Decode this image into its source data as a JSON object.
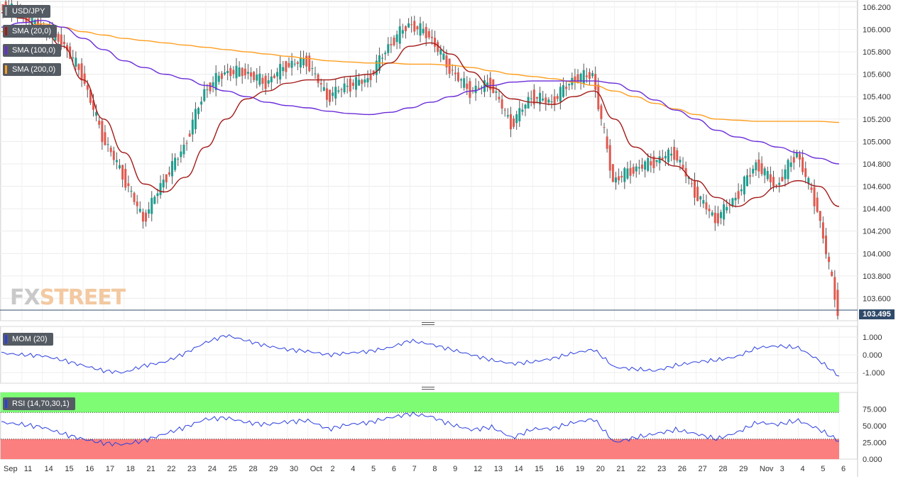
{
  "colors": {
    "up": "#1f9d8f",
    "down": "#e0594f",
    "sma20": "#a31a18",
    "sma100": "#6a2bd8",
    "sma200": "#ff9d1e",
    "momentum": "#2b3fe0",
    "rsi": "#2b3fe0",
    "overbought_zone": "#7dfc74",
    "oversold_zone": "#fb7f7f",
    "price_line": "#2f4a6a"
  },
  "logo": {
    "left": "FX",
    "right": "STREET"
  },
  "legend": {
    "pair": "USD/JPY",
    "sma20": "SMA (20,0)",
    "sma100": "SMA (100,0)",
    "sma200": "SMA (200,0)",
    "mom": "MOM (20)",
    "rsi": "RSI (14,70,30,1)"
  },
  "current_price": "103.495",
  "chart_data": [
    {
      "type": "line",
      "title": "USD/JPY",
      "x": [
        "Sep",
        "11",
        "14",
        "15",
        "16",
        "17",
        "18",
        "21",
        "22",
        "23",
        "24",
        "25",
        "28",
        "29",
        "30",
        "Oct",
        "2",
        "4",
        "5",
        "6",
        "7",
        "8",
        "9",
        "12",
        "13",
        "14",
        "15",
        "16",
        "19",
        "20",
        "21",
        "22",
        "23",
        "26",
        "27",
        "28",
        "29",
        "Nov",
        "3",
        "4",
        "5",
        "6"
      ],
      "ylim": [
        103.4,
        106.25
      ],
      "yticks": [
        "106.200",
        "106.000",
        "105.800",
        "105.600",
        "105.400",
        "105.200",
        "105.000",
        "104.800",
        "104.600",
        "104.400",
        "104.200",
        "104.000",
        "103.800",
        "103.600"
      ],
      "grid": true,
      "series": [
        {
          "name": "USD/JPY",
          "values": [
            106.2,
            106.15,
            106.02,
            105.9,
            105.6,
            105.05,
            104.7,
            104.3,
            104.65,
            104.95,
            105.45,
            105.62,
            105.62,
            105.52,
            105.68,
            105.72,
            105.4,
            105.5,
            105.55,
            105.85,
            106.05,
            105.95,
            105.65,
            105.45,
            105.52,
            105.15,
            105.4,
            105.35,
            105.55,
            105.6,
            104.65,
            104.75,
            104.82,
            104.9,
            104.55,
            104.3,
            104.5,
            104.8,
            104.6,
            104.9,
            104.4,
            103.495
          ]
        },
        {
          "name": "SMA (20,0)",
          "values": [
            106.15,
            106.1,
            106.0,
            105.85,
            105.55,
            105.2,
            104.9,
            104.62,
            104.55,
            104.68,
            104.95,
            105.2,
            105.38,
            105.45,
            105.52,
            105.55,
            105.55,
            105.58,
            105.6,
            105.7,
            105.85,
            105.88,
            105.78,
            105.62,
            105.48,
            105.38,
            105.35,
            105.33,
            105.4,
            105.45,
            105.2,
            104.95,
            104.85,
            104.78,
            104.65,
            104.5,
            104.42,
            104.5,
            104.6,
            104.65,
            104.6,
            104.42
          ]
        },
        {
          "name": "SMA (100,0)",
          "values": [
            106.02,
            106.06,
            106.08,
            106.02,
            105.92,
            105.82,
            105.72,
            105.66,
            105.6,
            105.56,
            105.5,
            105.45,
            105.4,
            105.35,
            105.32,
            105.3,
            105.27,
            105.25,
            105.24,
            105.26,
            105.3,
            105.35,
            105.4,
            105.45,
            105.5,
            105.53,
            105.54,
            105.54,
            105.54,
            105.54,
            105.52,
            105.45,
            105.37,
            105.28,
            105.2,
            105.1,
            105.04,
            105.0,
            104.95,
            104.9,
            104.85,
            104.8
          ]
        },
        {
          "name": "SMA (200,0)",
          "values": [
            105.98,
            106.02,
            106.05,
            106.02,
            105.98,
            105.95,
            105.92,
            105.9,
            105.88,
            105.86,
            105.84,
            105.82,
            105.8,
            105.78,
            105.76,
            105.74,
            105.72,
            105.71,
            105.7,
            105.7,
            105.69,
            105.69,
            105.68,
            105.66,
            105.63,
            105.6,
            105.58,
            105.56,
            105.53,
            105.5,
            105.45,
            105.4,
            105.34,
            105.29,
            105.24,
            105.2,
            105.19,
            105.18,
            105.18,
            105.18,
            105.18,
            105.17
          ]
        }
      ]
    },
    {
      "type": "line",
      "title": "MOM (20)",
      "ylim": [
        -1.6,
        1.6
      ],
      "yticks": [
        "1.000",
        "0.000",
        "-1.000"
      ],
      "series": [
        {
          "name": "MOM (20)",
          "values": [
            0.1,
            0.0,
            -0.05,
            -0.3,
            -0.6,
            -0.9,
            -1.0,
            -0.6,
            -0.4,
            0.1,
            0.7,
            1.1,
            0.8,
            0.5,
            0.3,
            0.2,
            0.0,
            0.1,
            0.2,
            0.4,
            0.8,
            0.6,
            0.3,
            0.0,
            -0.3,
            -0.5,
            -0.4,
            -0.2,
            0.1,
            0.3,
            -0.7,
            -0.8,
            -0.9,
            -0.6,
            -0.4,
            -0.3,
            -0.1,
            0.4,
            0.5,
            0.4,
            -0.3,
            -1.2
          ]
        }
      ]
    },
    {
      "type": "line",
      "title": "RSI (14,70,30,1)",
      "ylim": [
        0,
        100
      ],
      "yticks": [
        "75.000",
        "50.000",
        "25.000",
        "0.000"
      ],
      "series": [
        {
          "name": "RSI (14,70,30,1)",
          "values": [
            55,
            52,
            48,
            38,
            30,
            24,
            22,
            28,
            38,
            48,
            60,
            62,
            55,
            52,
            56,
            58,
            45,
            52,
            55,
            62,
            68,
            64,
            52,
            44,
            48,
            32,
            45,
            46,
            55,
            60,
            25,
            32,
            38,
            44,
            38,
            30,
            40,
            55,
            52,
            58,
            45,
            27
          ]
        }
      ]
    }
  ]
}
